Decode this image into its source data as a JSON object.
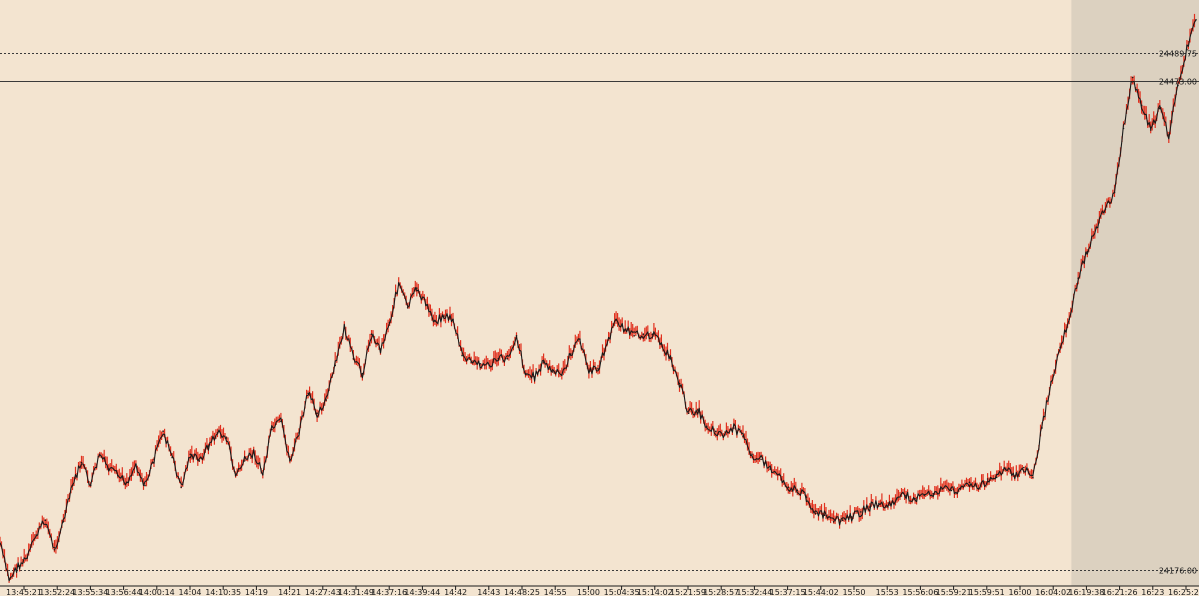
{
  "chart_data": {
    "type": "line",
    "title": "",
    "xlabel": "",
    "ylabel": "",
    "ylim": [
      24166,
      24522
    ],
    "colors": {
      "background": "#f3e4d0",
      "highlight_zone": "#dcd1c0",
      "line": "#1a1a1a",
      "wick": "#e0301e",
      "level": "#3a3a3a"
    },
    "x_ticks": [
      "13:45:21",
      "13:52:24",
      "13:55:34",
      "13:56:44",
      "14:00:14",
      "14:04",
      "14:10:35",
      "14:19",
      "14:21",
      "14:27:43",
      "14:31:49",
      "14:37:16",
      "14:39:44",
      "14:42",
      "14:43",
      "14:48:25",
      "14:55",
      "15:00",
      "15:04:35",
      "15:14:02",
      "15:21:59",
      "15:28:57",
      "15:32:44",
      "15:37:15",
      "15:44:02",
      "15:50",
      "15:53",
      "15:56:06",
      "15:59:21",
      "15:59:51",
      "16:00",
      "16:04:02",
      "16:19:38",
      "16:21:26",
      "16:23",
      "16:25:20"
    ],
    "highlight_start_tick": "16:19:38",
    "levels": [
      {
        "label": "24489.75",
        "value": 24489.75,
        "style": "dotted"
      },
      {
        "label": "24473.00",
        "value": 24473.0,
        "style": "solid"
      },
      {
        "label": "24176.00",
        "value": 24176.0,
        "style": "dotted"
      }
    ],
    "series": [
      {
        "values": [
          24192,
          24170,
          24178,
          24183,
          24197,
          24206,
          24188,
          24205,
          24227,
          24241,
          24227,
          24246,
          24237,
          24233,
          24229,
          24240,
          24227,
          24243,
          24260,
          24244,
          24226,
          24246,
          24242,
          24251,
          24259,
          24256,
          24233,
          24242,
          24247,
          24234,
          24261,
          24266,
          24242,
          24259,
          24283,
          24271,
          24279,
          24300,
          24323,
          24304,
          24295,
          24319,
          24310,
          24326,
          24350,
          24335,
          24347,
          24337,
          24327,
          24330,
          24328,
          24306,
          24302,
          24301,
          24300,
          24304,
          24304,
          24318,
          24295,
          24293,
          24302,
          24296,
          24294,
          24307,
          24316,
          24296,
          24298,
          24313,
          24328,
          24322,
          24318,
          24319,
          24319,
          24313,
          24304,
          24289,
          24271,
          24273,
          24263,
          24260,
          24258,
          24262,
          24257,
          24246,
          24243,
          24237,
          24234,
          24226,
          24224,
          24220,
          24210,
          24209,
          24205,
          24206,
          24208,
          24211,
          24214,
          24216,
          24214,
          24219,
          24221,
          24219,
          24221,
          24222,
          24225,
          24224,
          24225,
          24229,
          24225,
          24231,
          24232,
          24237,
          24232,
          24238,
          24232,
          24262,
          24290,
          24311,
          24328,
          24353,
          24369,
          24384,
          24395,
          24405,
          24444,
          24475,
          24458,
          24443,
          24456,
          24440,
          24470,
          24492,
          24510
        ]
      }
    ]
  }
}
